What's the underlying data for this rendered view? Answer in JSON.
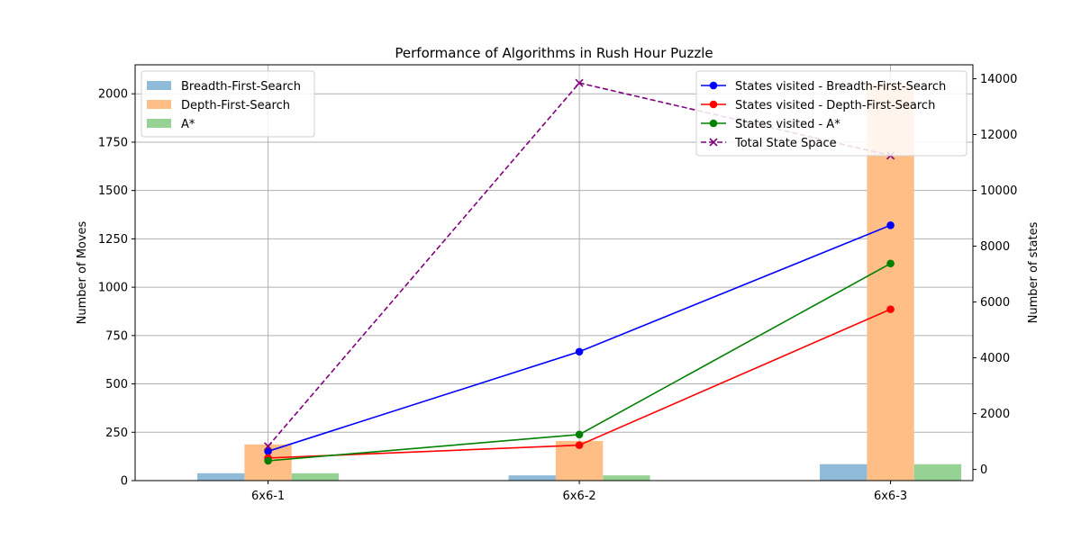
{
  "chart_data": {
    "type": "bar",
    "title": "Performance of Algorithms in Rush Hour Puzzle",
    "xlabel": "",
    "ylabel": "Number of Moves",
    "y2label": "Number of states",
    "categories": [
      "6x6-1",
      "6x6-2",
      "6x6-3"
    ],
    "ylim": [
      0,
      2150
    ],
    "y2lim": [
      -400,
      14500
    ],
    "yticks": [
      0,
      250,
      500,
      750,
      1000,
      1250,
      1500,
      1750,
      2000
    ],
    "y2ticks": [
      0,
      2000,
      4000,
      6000,
      8000,
      10000,
      12000,
      14000
    ],
    "grid": true,
    "bar_series": [
      {
        "name": "Breadth-First-Search",
        "color": "#8fbbd9",
        "values": [
          38,
          27,
          85
        ]
      },
      {
        "name": "Depth-First-Search",
        "color": "#ffbe86",
        "values": [
          187,
          205,
          2050
        ]
      },
      {
        "name": "A*",
        "color": "#96d294",
        "values": [
          38,
          27,
          85
        ]
      }
    ],
    "line_series": [
      {
        "name": "States visited - Breadth-First-Search",
        "color": "#0000ff",
        "style": "solid",
        "marker": "circle",
        "axis": "right",
        "values": [
          650,
          4220,
          8750
        ]
      },
      {
        "name": "States visited - Depth-First-Search",
        "color": "#ff0000",
        "style": "solid",
        "marker": "circle",
        "axis": "right",
        "values": [
          410,
          870,
          5740
        ]
      },
      {
        "name": "States visited - A*",
        "color": "#008000",
        "style": "solid",
        "marker": "circle",
        "axis": "right",
        "values": [
          310,
          1250,
          7380
        ]
      },
      {
        "name": "Total State Space",
        "color": "#800080",
        "style": "dashed",
        "marker": "x",
        "axis": "right",
        "values": [
          830,
          13850,
          11250
        ]
      }
    ],
    "legend_bars_placement": "top-left",
    "legend_lines_placement": "top-right"
  }
}
